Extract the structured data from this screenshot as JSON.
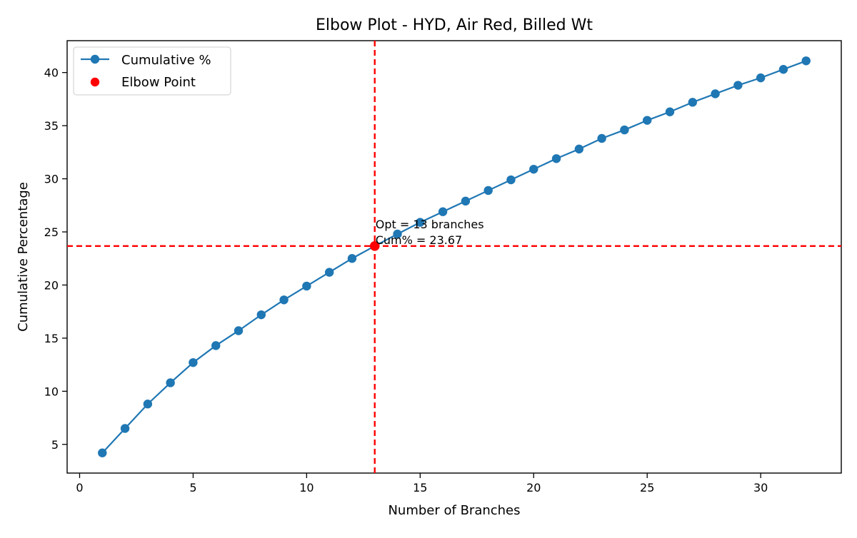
{
  "chart_data": {
    "type": "line",
    "title": "Elbow Plot - HYD, Air Red, Billed Wt",
    "xlabel": "Number of Branches",
    "ylabel": "Cumulative Percentage",
    "xlim": [
      -0.55,
      33.55
    ],
    "ylim": [
      2.3,
      43.0
    ],
    "x_ticks": [
      0,
      5,
      10,
      15,
      20,
      25,
      30
    ],
    "y_ticks": [
      5,
      10,
      15,
      20,
      25,
      30,
      35,
      40
    ],
    "legend": {
      "placement": "upper-left",
      "entries": [
        {
          "label": "Cumulative %",
          "kind": "line-marker"
        },
        {
          "label": "Elbow Point",
          "kind": "scatter"
        }
      ]
    },
    "series": [
      {
        "name": "Cumulative %",
        "color": "#1f77b4",
        "x": [
          1,
          2,
          3,
          4,
          5,
          6,
          7,
          8,
          9,
          10,
          11,
          12,
          13,
          14,
          15,
          16,
          17,
          18,
          19,
          20,
          21,
          22,
          23,
          24,
          25,
          26,
          27,
          28,
          29,
          30,
          31,
          32
        ],
        "values": [
          4.2,
          6.5,
          8.8,
          10.8,
          12.7,
          14.3,
          15.7,
          17.2,
          18.6,
          19.9,
          21.2,
          22.5,
          23.67,
          24.8,
          25.9,
          26.9,
          27.9,
          28.9,
          29.9,
          30.9,
          31.9,
          32.8,
          33.8,
          34.6,
          35.5,
          36.3,
          37.2,
          38.0,
          38.8,
          39.5,
          40.3,
          41.1
        ]
      }
    ],
    "elbow_point": {
      "name": "Elbow Point",
      "x": 13,
      "y": 23.67,
      "color": "#ff0000"
    },
    "reference_lines": {
      "vertical_x": 13,
      "horizontal_y": 23.67,
      "color": "#ff0000",
      "style": "dashed"
    },
    "annotation": {
      "line1": "Opt = 13 branches",
      "line2": "Cum% = 23.67",
      "color": "#ff0000",
      "anchor_x": 13,
      "anchor_y": 23.67
    },
    "grid": false
  }
}
